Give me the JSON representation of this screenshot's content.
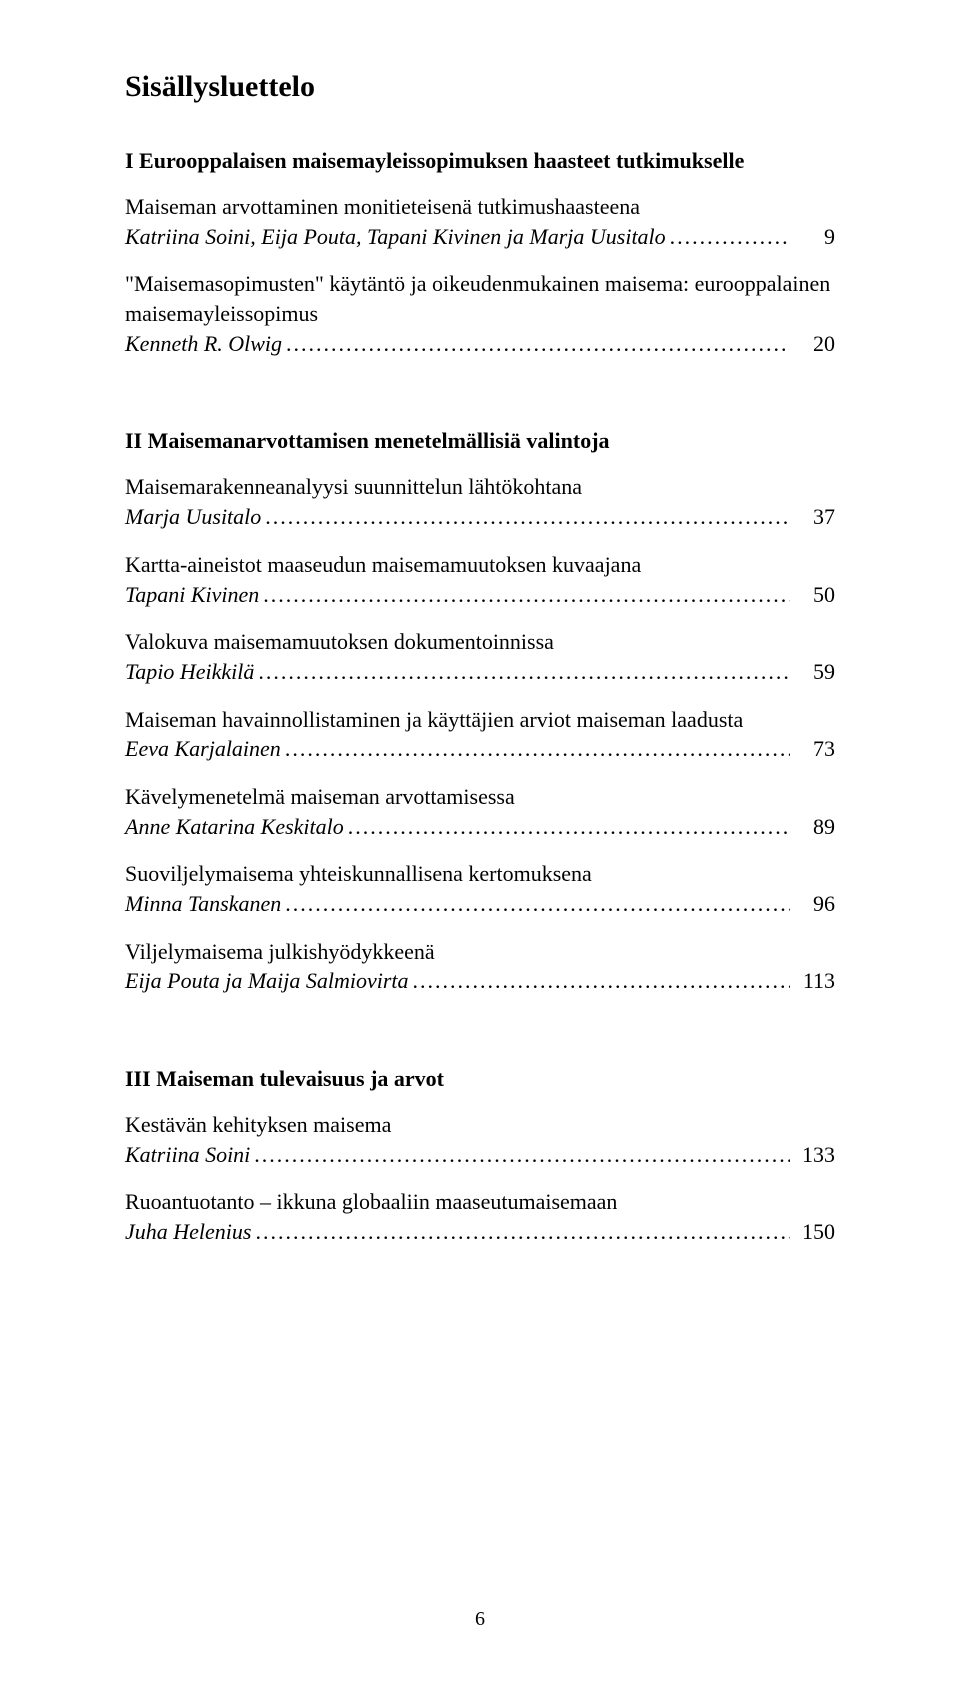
{
  "title": "Sisällysluettelo",
  "page_number": "6",
  "dots": "..............................................................................................................................................................",
  "sections": [
    {
      "heading": "I Eurooppalaisen maisemayleissopimuksen haasteet tutkimukselle",
      "entries": [
        {
          "title": "Maiseman arvottaminen monitieteisenä tutkimushaasteena",
          "author": "Katriina Soini, Eija Pouta, Tapani Kivinen ja Marja Uusitalo",
          "page": "9"
        },
        {
          "title": "\"Maisemasopimusten\" käytäntö ja oikeudenmukainen maisema: eurooppalainen maisemayleissopimus",
          "author": "Kenneth R. Olwig",
          "page": "20"
        }
      ]
    },
    {
      "heading": "II Maisemanarvottamisen menetelmällisiä valintoja",
      "entries": [
        {
          "title": "Maisemarakenneanalyysi suunnittelun lähtökohtana",
          "author": "Marja Uusitalo",
          "page": "37"
        },
        {
          "title": "Kartta-aineistot maaseudun maisemamuutoksen kuvaajana",
          "author": "Tapani Kivinen",
          "page": "50"
        },
        {
          "title": "Valokuva maisemamuutoksen dokumentoinnissa",
          "author": "Tapio Heikkilä",
          "page": "59"
        },
        {
          "title": "Maiseman havainnollistaminen ja käyttäjien arviot maiseman laadusta",
          "author": "Eeva Karjalainen",
          "page": "73"
        },
        {
          "title": "Kävelymenetelmä maiseman arvottamisessa",
          "author": "Anne Katarina Keskitalo",
          "page": "89"
        },
        {
          "title": "Suoviljelymaisema yhteiskunnallisena kertomuksena",
          "author": "Minna Tanskanen",
          "page": "96"
        },
        {
          "title": "Viljelymaisema julkishyödykkeenä",
          "author": "Eija Pouta ja Maija Salmiovirta",
          "page": "113"
        }
      ]
    },
    {
      "heading": "III Maiseman tulevaisuus ja arvot",
      "entries": [
        {
          "title": "Kestävän kehityksen maisema",
          "author": "Katriina Soini",
          "page": "133"
        },
        {
          "title": "Ruoantuotanto – ikkuna globaaliin maaseutumaisemaan",
          "author": "Juha Helenius",
          "page": "150"
        }
      ]
    }
  ]
}
